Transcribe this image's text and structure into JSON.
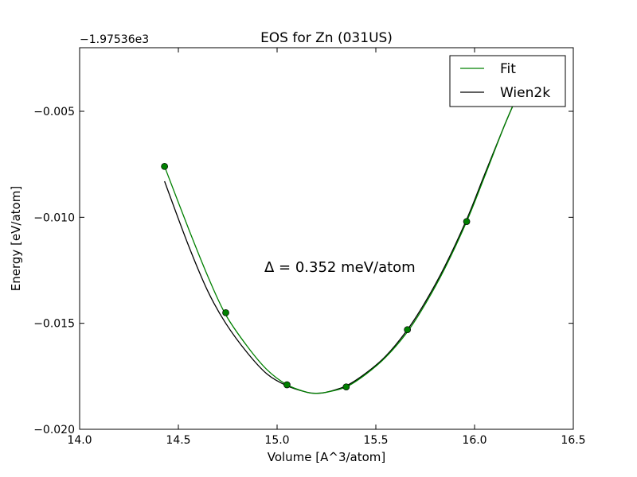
{
  "chart_data": {
    "type": "line",
    "title": "EOS for Zn (031US)",
    "xlabel": "Volume [A^3/atom]",
    "ylabel": "Energy [eV/atom]",
    "y_offset_label": "−1.97536e3",
    "xlim": [
      14.0,
      16.5
    ],
    "ylim": [
      -0.02,
      -0.002
    ],
    "x_ticks": [
      14.0,
      14.5,
      15.0,
      15.5,
      16.0,
      16.5
    ],
    "x_tick_labels": [
      "14.0",
      "14.5",
      "15.0",
      "15.5",
      "16.0",
      "16.5"
    ],
    "y_ticks": [
      -0.02,
      -0.015,
      -0.01,
      -0.005
    ],
    "y_tick_labels": [
      "−0.020",
      "−0.015",
      "−0.010",
      "−0.005"
    ],
    "annotation": "Δ = 0.352 meV/atom",
    "grid": false,
    "legend_position": "top-right",
    "colors": {
      "fit": "#008000",
      "wien2k": "#000000",
      "points": "#008000"
    },
    "series": [
      {
        "name": "Fit",
        "x": [
          14.43,
          14.55,
          14.65,
          14.74,
          14.85,
          14.95,
          15.05,
          15.15,
          15.2,
          15.25,
          15.35,
          15.45,
          15.55,
          15.66,
          15.75,
          15.85,
          15.96,
          16.05,
          16.15,
          16.21
        ],
        "y": [
          -0.0076,
          -0.0105,
          -0.0128,
          -0.0146,
          -0.0161,
          -0.0172,
          -0.0179,
          -0.01825,
          -0.0183,
          -0.01825,
          -0.018,
          -0.0174,
          -0.0166,
          -0.0154,
          -0.0141,
          -0.0124,
          -0.0102,
          -0.0081,
          -0.0057,
          -0.0044
        ]
      },
      {
        "name": "Wien2k",
        "x": [
          14.43,
          14.55,
          14.65,
          14.74,
          14.85,
          14.95,
          15.05,
          15.15,
          15.2,
          15.25,
          15.35,
          15.45,
          15.55,
          15.66,
          15.75,
          15.85,
          15.96,
          16.05,
          16.15,
          16.21
        ],
        "y": [
          -0.0083,
          -0.0113,
          -0.0135,
          -0.015,
          -0.0164,
          -0.0174,
          -0.01795,
          -0.01825,
          -0.0183,
          -0.01825,
          -0.01795,
          -0.01735,
          -0.01655,
          -0.0153,
          -0.014,
          -0.0123,
          -0.0101,
          -0.008,
          -0.0057,
          -0.0044
        ]
      }
    ],
    "points": {
      "x": [
        14.43,
        14.74,
        15.05,
        15.35,
        15.66,
        15.96
      ],
      "y": [
        -0.0076,
        -0.0145,
        -0.0179,
        -0.018,
        -0.0153,
        -0.0102
      ]
    }
  }
}
